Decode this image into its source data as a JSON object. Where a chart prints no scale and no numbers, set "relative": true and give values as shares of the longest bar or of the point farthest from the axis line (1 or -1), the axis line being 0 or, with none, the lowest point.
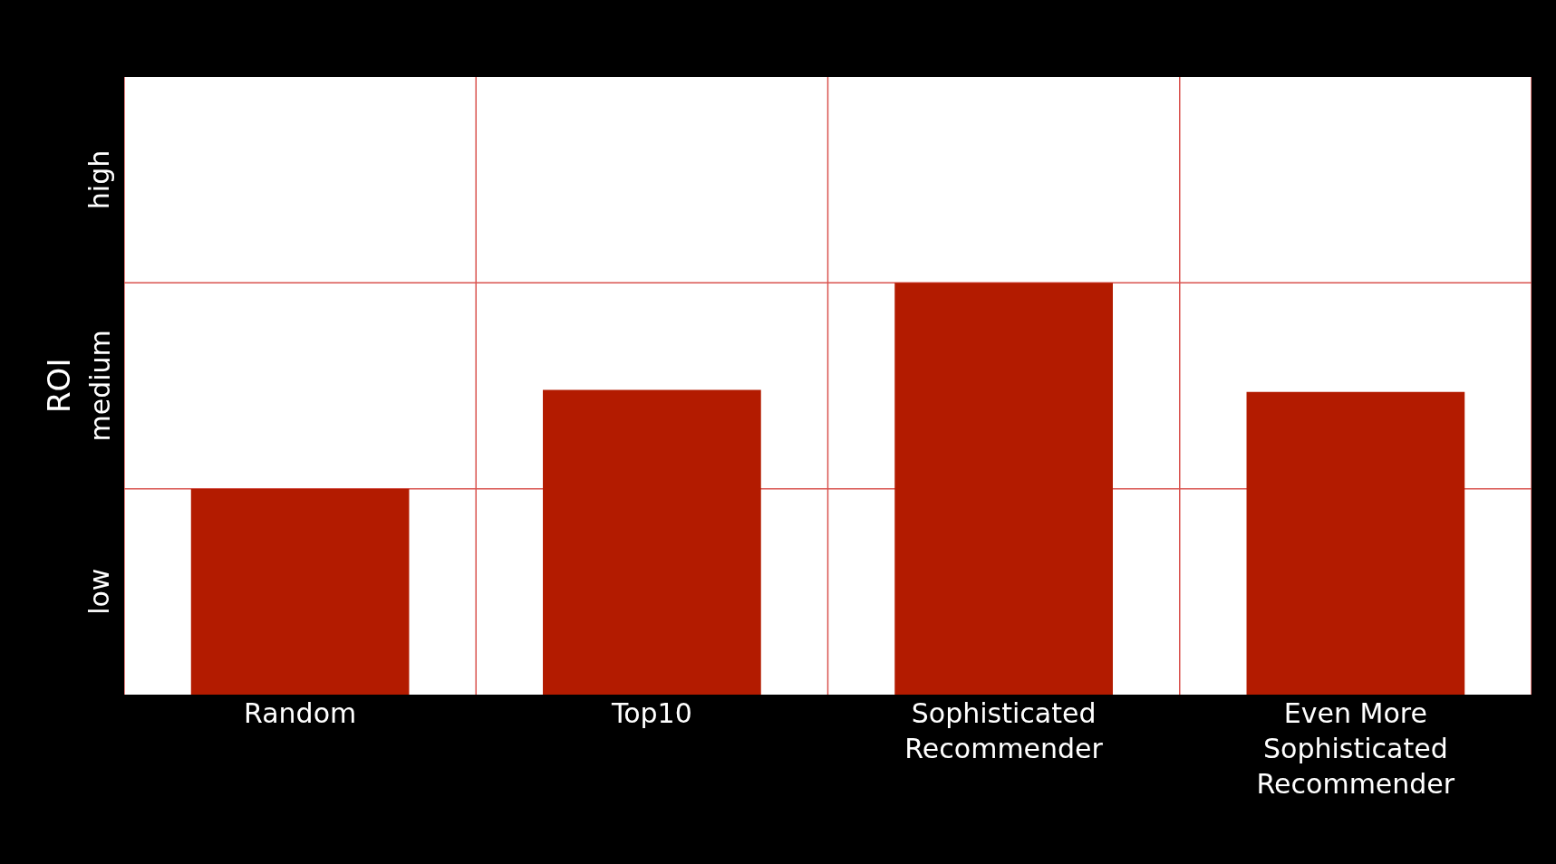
{
  "chart_data": {
    "type": "bar",
    "ylabel": "ROI",
    "categories": [
      "Random",
      "Top10",
      "Sophisticated Recommender",
      "Even More Sophisticated Recommender"
    ],
    "values": [
      0.5,
      0.74,
      1,
      0.735
    ],
    "color": "#b31b00",
    "relative": true,
    "annotations": [
      "low",
      "medium",
      "high"
    ],
    "grid": true
  }
}
